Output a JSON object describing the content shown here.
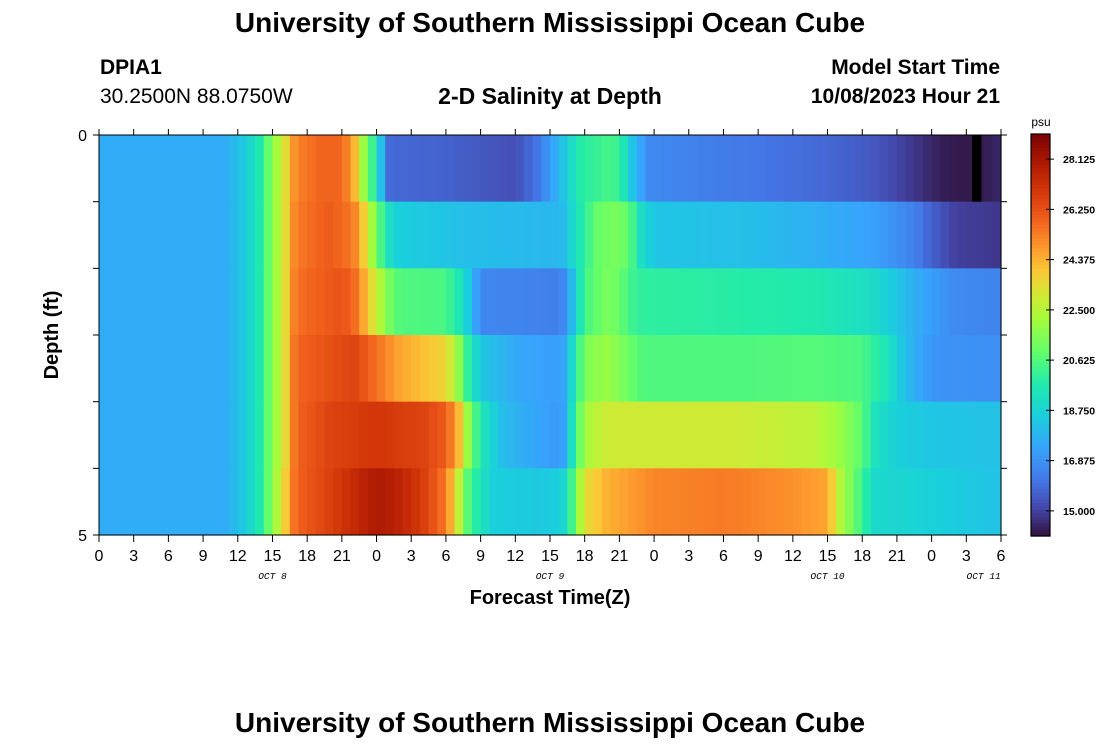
{
  "header": {
    "title": "University of Southern Mississippi Ocean Cube",
    "station_id": "DPIA1",
    "coordinates": "30.2500N  88.0750W",
    "chart_title": "2-D Salinity at Depth",
    "model_start_label": "Model Start Time",
    "model_start_time": "10/08/2023 Hour 21"
  },
  "footer": {
    "title": "University of Southern Mississippi Ocean Cube"
  },
  "chart_data": {
    "type": "heatmap",
    "title": "2-D Salinity at Depth",
    "xlabel": "Forecast Time(Z)",
    "ylabel": "Depth (ft)",
    "y_ticks": [
      "0",
      "5"
    ],
    "y_range": [
      0,
      5
    ],
    "x_tick_labels": [
      "0",
      "3",
      "6",
      "9",
      "12",
      "15",
      "18",
      "21",
      "0",
      "3",
      "6",
      "9",
      "12",
      "15",
      "18",
      "21",
      "0",
      "3",
      "6",
      "9",
      "12",
      "15",
      "18",
      "21",
      "0",
      "3",
      "6"
    ],
    "day_labels": [
      "OCT 8",
      "OCT 9",
      "OCT 10",
      "OCT 11"
    ],
    "x_range_hours": [
      0,
      78
    ],
    "colorbar": {
      "unit": "psu",
      "min": 14.0625,
      "max": 29.0625,
      "tick_labels": [
        "15.000",
        "16.875",
        "18.750",
        "20.625",
        "22.500",
        "24.375",
        "26.250",
        "28.125"
      ],
      "tick_values": [
        15.0,
        16.875,
        18.75,
        20.625,
        22.5,
        24.375,
        26.25,
        28.125
      ]
    },
    "row_salinity_keyframes_psu": [
      [
        [
          0,
          17.6
        ],
        [
          11,
          17.6
        ],
        [
          12.5,
          18.4
        ],
        [
          14,
          19.8
        ],
        [
          15,
          21.6
        ],
        [
          16,
          23.2
        ],
        [
          17,
          25.2
        ],
        [
          19,
          25.8
        ],
        [
          21,
          25.8
        ],
        [
          22,
          24.6
        ],
        [
          23,
          21.6
        ],
        [
          24,
          19.5
        ],
        [
          25,
          15.9
        ],
        [
          30,
          15.7
        ],
        [
          36,
          15.3
        ],
        [
          38,
          16.2
        ],
        [
          40,
          18.1
        ],
        [
          41.5,
          19.8
        ],
        [
          44,
          20.4
        ],
        [
          45,
          20.2
        ],
        [
          46,
          18.4
        ],
        [
          47.5,
          16.7
        ],
        [
          54,
          16.3
        ],
        [
          62,
          15.9
        ],
        [
          67,
          15.5
        ],
        [
          70,
          14.9
        ],
        [
          72,
          14.5
        ],
        [
          73,
          14.3
        ],
        [
          76,
          14.2
        ],
        [
          78,
          14.5
        ]
      ],
      [
        [
          0,
          17.6
        ],
        [
          11,
          17.6
        ],
        [
          12.5,
          18.4
        ],
        [
          14,
          19.8
        ],
        [
          15,
          21.6
        ],
        [
          16,
          23.2
        ],
        [
          17,
          25.4
        ],
        [
          20,
          26.0
        ],
        [
          22,
          25.4
        ],
        [
          23,
          23.6
        ],
        [
          24,
          21.2
        ],
        [
          25,
          19.3
        ],
        [
          26,
          18.5
        ],
        [
          28,
          18.4
        ],
        [
          32,
          18.1
        ],
        [
          40,
          17.9
        ],
        [
          41,
          19.0
        ],
        [
          42,
          20.0
        ],
        [
          43,
          21.0
        ],
        [
          45,
          21.4
        ],
        [
          46,
          20.6
        ],
        [
          47,
          19.0
        ],
        [
          48,
          18.3
        ],
        [
          56,
          18.1
        ],
        [
          62,
          17.7
        ],
        [
          67,
          17.3
        ],
        [
          70,
          16.6
        ],
        [
          72,
          15.7
        ],
        [
          74,
          15.0
        ],
        [
          78,
          14.8
        ]
      ],
      [
        [
          0,
          17.6
        ],
        [
          11,
          17.6
        ],
        [
          12.5,
          18.4
        ],
        [
          14,
          19.8
        ],
        [
          15,
          21.6
        ],
        [
          16,
          23.2
        ],
        [
          17,
          25.6
        ],
        [
          21,
          26.2
        ],
        [
          22,
          25.8
        ],
        [
          23,
          24.4
        ],
        [
          24,
          22.8
        ],
        [
          25,
          21.4
        ],
        [
          26,
          20.6
        ],
        [
          30,
          20.5
        ],
        [
          31.5,
          19.2
        ],
        [
          33,
          16.6
        ],
        [
          40,
          16.4
        ],
        [
          41,
          18.2
        ],
        [
          42,
          20.4
        ],
        [
          44,
          21.4
        ],
        [
          45,
          21.0
        ],
        [
          46,
          20.3
        ],
        [
          47,
          20.0
        ],
        [
          54,
          19.9
        ],
        [
          62,
          19.7
        ],
        [
          67,
          19.1
        ],
        [
          71,
          17.5
        ],
        [
          74,
          16.7
        ],
        [
          78,
          16.5
        ]
      ],
      [
        [
          0,
          17.6
        ],
        [
          11,
          17.6
        ],
        [
          12.5,
          18.4
        ],
        [
          14,
          19.8
        ],
        [
          15,
          21.6
        ],
        [
          16,
          23.2
        ],
        [
          17,
          25.8
        ],
        [
          22,
          26.6
        ],
        [
          24,
          25.6
        ],
        [
          26,
          24.6
        ],
        [
          30,
          23.6
        ],
        [
          31,
          22.0
        ],
        [
          32,
          19.8
        ],
        [
          33,
          18.4
        ],
        [
          36,
          17.5
        ],
        [
          40,
          17.2
        ],
        [
          41,
          19.2
        ],
        [
          42,
          21.4
        ],
        [
          44,
          22.0
        ],
        [
          45,
          21.5
        ],
        [
          46,
          21.0
        ],
        [
          47,
          20.6
        ],
        [
          56,
          20.6
        ],
        [
          62,
          20.7
        ],
        [
          66,
          20.5
        ],
        [
          68,
          19.5
        ],
        [
          70,
          17.9
        ],
        [
          72,
          17.0
        ],
        [
          78,
          16.8
        ]
      ],
      [
        [
          0,
          17.6
        ],
        [
          11,
          17.6
        ],
        [
          12.5,
          18.4
        ],
        [
          14,
          19.8
        ],
        [
          15,
          21.6
        ],
        [
          16,
          23.2
        ],
        [
          17,
          25.8
        ],
        [
          20,
          26.6
        ],
        [
          24,
          27.0
        ],
        [
          28,
          26.6
        ],
        [
          30,
          26.0
        ],
        [
          31,
          24.6
        ],
        [
          32,
          21.6
        ],
        [
          33,
          19.6
        ],
        [
          35,
          18.0
        ],
        [
          40,
          17.0
        ],
        [
          41,
          19.6
        ],
        [
          42,
          22.2
        ],
        [
          44,
          23.0
        ],
        [
          55,
          23.0
        ],
        [
          62,
          22.6
        ],
        [
          64,
          22.0
        ],
        [
          66,
          20.8
        ],
        [
          67,
          19.4
        ],
        [
          69,
          18.6
        ],
        [
          72,
          18.3
        ],
        [
          78,
          18.2
        ]
      ],
      [
        [
          0,
          17.6
        ],
        [
          11,
          17.6
        ],
        [
          12.5,
          18.4
        ],
        [
          14,
          19.8
        ],
        [
          15,
          21.6
        ],
        [
          16,
          23.6
        ],
        [
          17,
          25.8
        ],
        [
          21,
          27.0
        ],
        [
          24,
          28.0
        ],
        [
          26,
          27.6
        ],
        [
          28,
          26.8
        ],
        [
          30,
          25.4
        ],
        [
          31,
          23.0
        ],
        [
          32,
          20.4
        ],
        [
          34,
          18.6
        ],
        [
          38,
          18.4
        ],
        [
          40,
          18.6
        ],
        [
          41,
          20.6
        ],
        [
          42,
          23.4
        ],
        [
          44,
          24.4
        ],
        [
          48,
          25.2
        ],
        [
          54,
          25.4
        ],
        [
          60,
          25.0
        ],
        [
          63,
          24.6
        ],
        [
          64,
          22.6
        ],
        [
          66,
          20.2
        ],
        [
          67,
          19.0
        ],
        [
          78,
          18.2
        ]
      ]
    ],
    "black_cell": {
      "row": 0,
      "hour_start": 75.5,
      "hour_end": 76.3
    }
  }
}
